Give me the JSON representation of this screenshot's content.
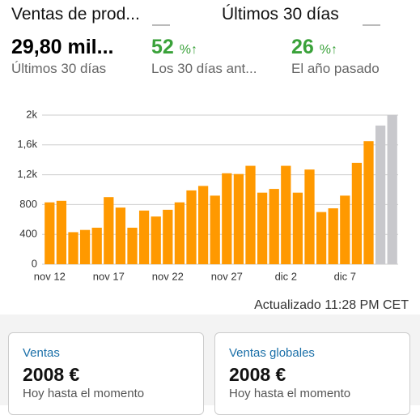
{
  "header": {
    "metric": "Ventas de prod...",
    "period": "Últimos 30 días"
  },
  "stats": [
    {
      "value": "29,80 mil...",
      "label": "Últimos 30 días"
    },
    {
      "value": "52",
      "unit": "%",
      "label": "Los 30 días ant..."
    },
    {
      "value": "26",
      "unit": "%",
      "label": "El año pasado"
    }
  ],
  "chart_data": {
    "type": "bar",
    "categories": [
      "nov 12",
      null,
      null,
      null,
      null,
      "nov 17",
      null,
      null,
      null,
      null,
      "nov 22",
      null,
      null,
      null,
      null,
      "nov 27",
      null,
      null,
      null,
      null,
      "dic 2",
      null,
      null,
      null,
      null,
      "dic 7",
      null,
      null,
      null,
      null
    ],
    "values": [
      830,
      850,
      430,
      460,
      490,
      900,
      760,
      490,
      720,
      640,
      730,
      830,
      990,
      1050,
      920,
      1220,
      1210,
      1320,
      960,
      1010,
      1320,
      960,
      1270,
      700,
      750,
      920,
      1360,
      1650,
      1860,
      2000
    ],
    "colors": [
      "#ff9900",
      "#ff9900",
      "#ff9900",
      "#ff9900",
      "#ff9900",
      "#ff9900",
      "#ff9900",
      "#ff9900",
      "#ff9900",
      "#ff9900",
      "#ff9900",
      "#ff9900",
      "#ff9900",
      "#ff9900",
      "#ff9900",
      "#ff9900",
      "#ff9900",
      "#ff9900",
      "#ff9900",
      "#ff9900",
      "#ff9900",
      "#ff9900",
      "#ff9900",
      "#ff9900",
      "#ff9900",
      "#ff9900",
      "#ff9900",
      "#ff9900",
      "#c8c8cc",
      "#c8c8cc"
    ],
    "ylim": [
      0,
      2000
    ],
    "yticks": [
      0,
      400,
      800,
      {
        "value": 1200,
        "label": "1,2k"
      },
      {
        "value": 1600,
        "label": "1,6k"
      },
      {
        "value": 2000,
        "label": "2k"
      }
    ],
    "grid": true
  },
  "updated": "Actualizado 11:28 PM CET",
  "cards": [
    {
      "title": "Ventas",
      "value": "2008 €",
      "note": "Hoy hasta el momento"
    },
    {
      "title": "Ventas globales",
      "value": "2008 €",
      "note": "Hoy hasta el momento"
    }
  ]
}
